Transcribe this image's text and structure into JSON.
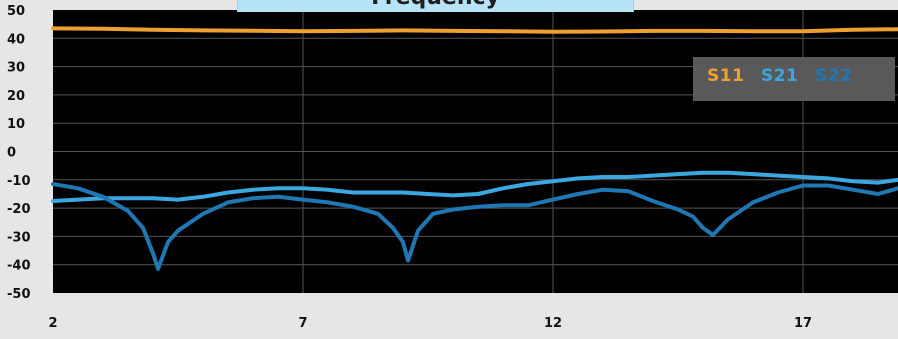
{
  "chart_data": {
    "type": "line",
    "title": "Frequency",
    "xlabel": "",
    "ylabel": "",
    "xlim": [
      2,
      18.9
    ],
    "ylim": [
      -50,
      50
    ],
    "x_ticks": [
      "2",
      "7",
      "12",
      "17"
    ],
    "y_ticks": [
      "50",
      "40",
      "30",
      "20",
      "10",
      "0",
      "-10",
      "-20",
      "-30",
      "-40",
      "-50"
    ],
    "grid": true,
    "legend_position": "top-right",
    "series": [
      {
        "name": "S11",
        "color": "#f0a030",
        "x": [
          2,
          3,
          4,
          5,
          6,
          7,
          8,
          9,
          10,
          11,
          12,
          13,
          14,
          15,
          16,
          17,
          18,
          18.9
        ],
        "values": [
          43.5,
          43.4,
          43,
          42.8,
          42.7,
          42.5,
          42.6,
          42.8,
          42.6,
          42.5,
          42.3,
          42.4,
          42.6,
          42.6,
          42.5,
          42.5,
          43.0,
          43.2
        ]
      },
      {
        "name": "S21",
        "color": "#3aa7e0",
        "x": [
          2,
          2.5,
          3,
          3.5,
          4,
          4.5,
          5,
          5.5,
          6,
          6.5,
          7,
          7.5,
          8,
          8.5,
          9,
          9.5,
          10,
          10.5,
          11,
          11.5,
          12,
          12.5,
          13,
          13.5,
          14,
          14.5,
          15,
          15.5,
          16,
          16.5,
          17,
          17.5,
          18,
          18.5,
          18.9
        ],
        "values": [
          -17.5,
          -17,
          -16.5,
          -16.5,
          -16.5,
          -17,
          -16,
          -14.5,
          -13.5,
          -13,
          -13,
          -13.5,
          -14.5,
          -14.5,
          -14.5,
          -15,
          -15.5,
          -15,
          -13,
          -11.5,
          -10.5,
          -9.5,
          -9,
          -9,
          -8.5,
          -8,
          -7.5,
          -7.5,
          -8,
          -8.5,
          -9,
          -9.5,
          -10.5,
          -11,
          -10
        ]
      },
      {
        "name": "S22",
        "color": "#1f78b4",
        "x": [
          2,
          2.5,
          3,
          3.5,
          3.8,
          4,
          4.1,
          4.3,
          4.5,
          5,
          5.5,
          6,
          6.5,
          7,
          7.5,
          8,
          8.5,
          8.8,
          9,
          9.1,
          9.3,
          9.6,
          10,
          10.5,
          11,
          11.5,
          12,
          12.5,
          13,
          13.5,
          14,
          14.5,
          14.8,
          15,
          15.2,
          15.5,
          16,
          16.5,
          17,
          17.5,
          18,
          18.5,
          18.9
        ],
        "values": [
          -11.5,
          -13,
          -16,
          -21,
          -27,
          -36,
          -41.5,
          -32,
          -28,
          -22,
          -18,
          -16.5,
          -16,
          -17,
          -18,
          -19.5,
          -22,
          -27,
          -32,
          -38.5,
          -28,
          -22,
          -20.5,
          -19.5,
          -19,
          -19,
          -17,
          -15,
          -13.5,
          -14,
          -17.5,
          -20.5,
          -23,
          -27,
          -29.5,
          -24,
          -18,
          -14.5,
          -12,
          -12,
          -13.5,
          -15,
          -13
        ]
      }
    ]
  }
}
